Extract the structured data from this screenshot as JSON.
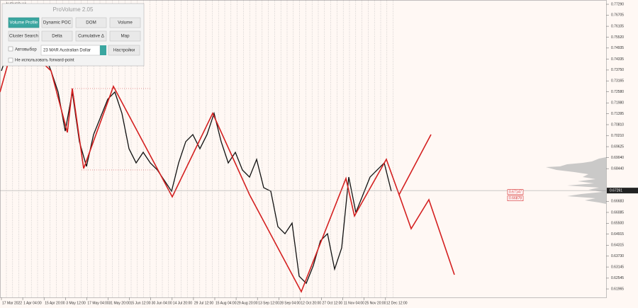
{
  "symbol": "AUDUSD,H4",
  "panel": {
    "title": "ProVolume 2.05",
    "buttons": [
      "Volume Profile",
      "Dynamic POC",
      "DOM",
      "Volume",
      "Cluster Search",
      "Delta",
      "Cumulative Δ",
      "Map"
    ],
    "auto_select": "Автовыбор",
    "instrument": "23 MAR Australian Dollar",
    "settings": "Настройки",
    "forward_point": "Не использовать forward-point"
  },
  "chart": {
    "ylim": [
      0.6151,
      0.7752
    ],
    "yticks": [
      {
        "value": 0.7729,
        "label": "0.77290"
      },
      0.76705,
      0.76105,
      {
        "value": 0.7552,
        "label": "0.75520"
      },
      0.74935,
      0.74335,
      {
        "value": 0.7375,
        "label": "0.73750"
      },
      0.73165,
      {
        "value": 0.7258,
        "label": "0.72580"
      },
      {
        "value": 0.7198,
        "label": "0.71980"
      },
      0.71395,
      {
        "value": 0.7081,
        "label": "0.70810"
      },
      {
        "value": 0.7021,
        "label": "0.70210"
      },
      0.69625,
      {
        "value": 0.6904,
        "label": "0.69040"
      },
      {
        "value": 0.6844,
        "label": "0.68440"
      },
      0.66683,
      0.66085,
      {
        "value": 0.655,
        "label": "0.65500"
      },
      0.64915,
      0.64315,
      {
        "value": 0.6373,
        "label": "0.63730"
      },
      0.63145,
      0.62545,
      0.61965
    ],
    "xlabels": [
      "17 Mar 2022",
      "1 Apr 04:00",
      "15 Apr 20:00",
      "3 May 12:00",
      "17 May 04:00",
      "31 May 20:00",
      "15 Jun 12:00",
      "30 Jun 04:00",
      "14 Jul 20:00",
      "29 Jul 12:00",
      "15 Aug 04:00",
      "29 Aug 20:00",
      "13 Sep 12:00",
      "28 Sep 04:00",
      "12 Oct 20:00",
      "27 Oct 12:00",
      "11 Nov 04:00",
      "25 Nov 20:00",
      "12 Dec 12:00"
    ],
    "current_price": 0.67261,
    "levels": [
      0.67147,
      0.66878
    ],
    "price_series": [
      0.73706,
      0.7485,
      0.75231,
      0.75422,
      0.75613,
      0.75231,
      0.74659,
      0.73706,
      0.72563,
      0.70466,
      0.72563,
      0.69894,
      0.6856,
      0.70275,
      0.71228,
      0.72181,
      0.72563,
      0.71419,
      0.69513,
      0.6875,
      0.69322,
      0.6875,
      0.68369,
      0.67797,
      0.67225,
      0.6875,
      0.69894,
      0.70275,
      0.69513,
      0.70275,
      0.71419,
      0.69894,
      0.6875,
      0.69322,
      0.68369,
      0.67988,
      0.68941,
      0.67416,
      0.67225,
      0.65319,
      0.64938,
      0.6551,
      0.6265,
      0.62269,
      0.63222,
      0.64557,
      0.64938,
      0.63032,
      0.64175,
      0.67988,
      0.66082,
      0.67035,
      0.67988,
      0.68369,
      0.6875,
      0.67225
    ]
  }
}
